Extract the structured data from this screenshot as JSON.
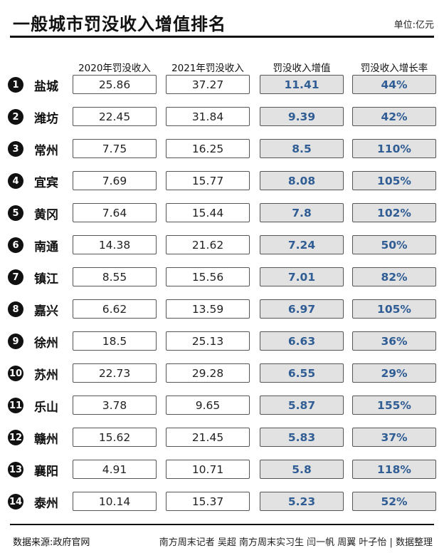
{
  "header": {
    "title": "一般城市罚没收入增值排名",
    "unit": "单位:亿元"
  },
  "columns": [
    "2020年罚没收入",
    "2021年罚没收入",
    "罚没收入增值",
    "罚没收入增长率"
  ],
  "chart_data": {
    "type": "table",
    "title": "一般城市罚没收入增值排名",
    "unit": "单位:亿元",
    "columns": [
      "2020年罚没收入",
      "2021年罚没收入",
      "罚没收入增值",
      "罚没收入增长率"
    ],
    "rows": [
      {
        "rank": "1",
        "city": "盐城",
        "v2020": "25.86",
        "v2021": "37.27",
        "increase": "11.41",
        "growth": "44%"
      },
      {
        "rank": "2",
        "city": "潍坊",
        "v2020": "22.45",
        "v2021": "31.84",
        "increase": "9.39",
        "growth": "42%"
      },
      {
        "rank": "3",
        "city": "常州",
        "v2020": "7.75",
        "v2021": "16.25",
        "increase": "8.5",
        "growth": "110%"
      },
      {
        "rank": "4",
        "city": "宜宾",
        "v2020": "7.69",
        "v2021": "15.77",
        "increase": "8.08",
        "growth": "105%"
      },
      {
        "rank": "5",
        "city": "黄冈",
        "v2020": "7.64",
        "v2021": "15.44",
        "increase": "7.8",
        "growth": "102%"
      },
      {
        "rank": "6",
        "city": "南通",
        "v2020": "14.38",
        "v2021": "21.62",
        "increase": "7.24",
        "growth": "50%"
      },
      {
        "rank": "7",
        "city": "镇江",
        "v2020": "8.55",
        "v2021": "15.56",
        "increase": "7.01",
        "growth": "82%"
      },
      {
        "rank": "8",
        "city": "嘉兴",
        "v2020": "6.62",
        "v2021": "13.59",
        "increase": "6.97",
        "growth": "105%"
      },
      {
        "rank": "9",
        "city": "徐州",
        "v2020": "18.5",
        "v2021": "25.13",
        "increase": "6.63",
        "growth": "36%"
      },
      {
        "rank": "10",
        "city": "苏州",
        "v2020": "22.73",
        "v2021": "29.28",
        "increase": "6.55",
        "growth": "29%"
      },
      {
        "rank": "11",
        "city": "乐山",
        "v2020": "3.78",
        "v2021": "9.65",
        "increase": "5.87",
        "growth": "155%"
      },
      {
        "rank": "12",
        "city": "赣州",
        "v2020": "15.62",
        "v2021": "21.45",
        "increase": "5.83",
        "growth": "37%"
      },
      {
        "rank": "13",
        "city": "襄阳",
        "v2020": "4.91",
        "v2021": "10.71",
        "increase": "5.8",
        "growth": "118%"
      },
      {
        "rank": "14",
        "city": "泰州",
        "v2020": "10.14",
        "v2021": "15.37",
        "increase": "5.23",
        "growth": "52%"
      }
    ]
  },
  "footer": {
    "source": "数据来源:政府官网",
    "credit": "南方周末记者 吴超 南方周末实习生 闫一帆 周翼 叶子怡 | 数据整理"
  },
  "colors": {
    "highlight_fill": "#e2e2e2",
    "highlight_text": "#2f5d94",
    "badge": "#111111"
  }
}
